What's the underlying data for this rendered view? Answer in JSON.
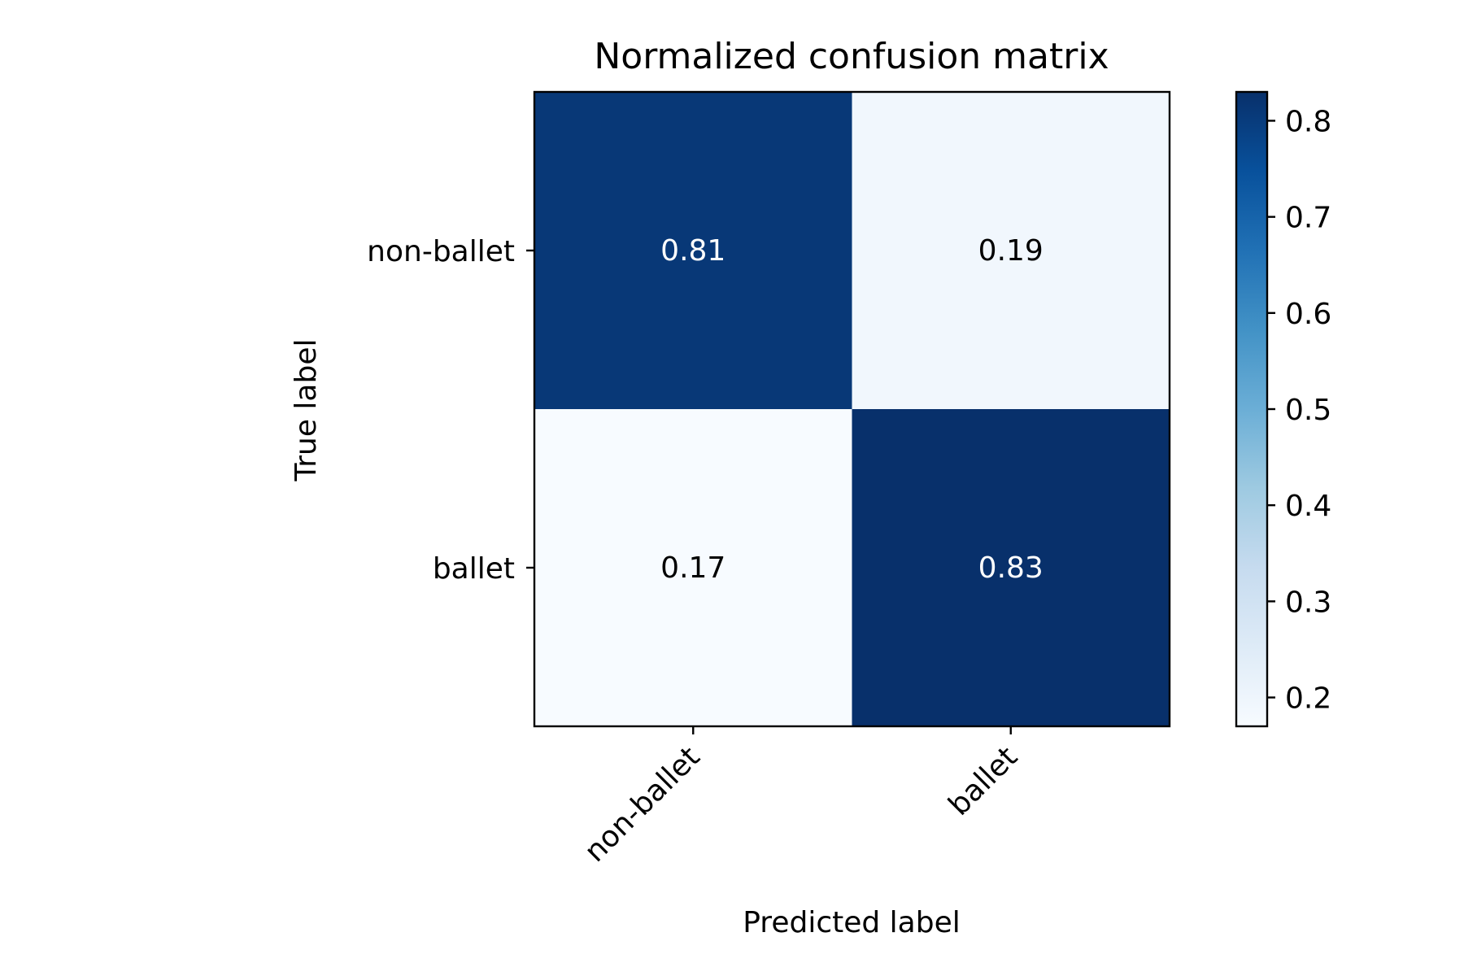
{
  "chart_data": {
    "type": "heatmap",
    "title": "Normalized confusion matrix",
    "xlabel": "Predicted label",
    "ylabel": "True label",
    "x_categories": [
      "non-ballet",
      "ballet"
    ],
    "y_categories": [
      "non-ballet",
      "ballet"
    ],
    "values": [
      [
        0.81,
        0.19
      ],
      [
        0.17,
        0.83
      ]
    ],
    "cell_labels": [
      [
        "0.81",
        "0.19"
      ],
      [
        "0.17",
        "0.83"
      ]
    ],
    "x_tick_rotation_deg": 45,
    "colormap": "Blues",
    "colorbar": {
      "range": [
        0.17,
        0.83
      ],
      "ticks": [
        0.2,
        0.3,
        0.4,
        0.5,
        0.6,
        0.7,
        0.8
      ],
      "tick_labels": [
        "0.2",
        "0.3",
        "0.4",
        "0.5",
        "0.6",
        "0.7",
        "0.8"
      ]
    },
    "colors": {
      "high": "#08306b",
      "low": "#f7fbff",
      "text_on_dark": "#ffffff",
      "text_on_light": "#000000"
    },
    "grid": false
  }
}
